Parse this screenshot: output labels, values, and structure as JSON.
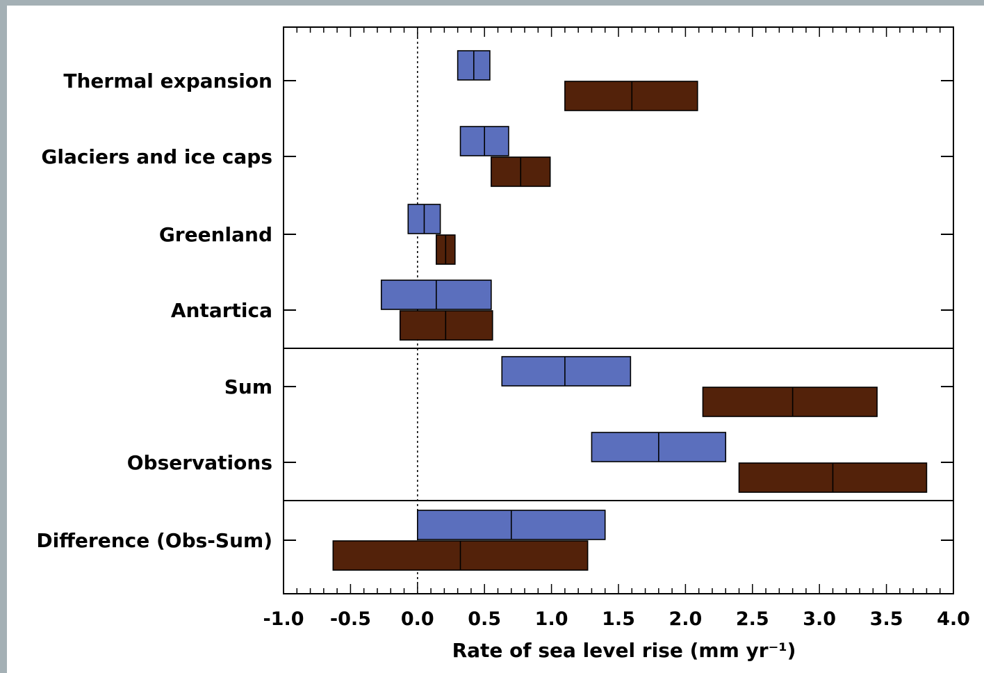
{
  "chart_data": {
    "type": "bar",
    "subtype": "range-bars",
    "xlabel": "Rate of sea level rise (mm yr⁻¹)",
    "xlim": [
      -1.0,
      4.0
    ],
    "xticks": [
      "-1.0",
      "-0.5",
      "0.0",
      "0.5",
      "1.0",
      "1.5",
      "2.0",
      "2.5",
      "3.0",
      "3.5",
      "4.0"
    ],
    "reference_line_x": 0.0,
    "colors": {
      "blue": "#5b6fbd",
      "brown": "#53220a"
    },
    "categories": [
      "Thermal expansion",
      "Glaciers and ice caps",
      "Greenland",
      "Antartica",
      "Sum",
      "Observations",
      "Difference (Obs-Sum)"
    ],
    "group_separators_after": [
      "Antartica",
      "Observations"
    ],
    "series": [
      {
        "color": "blue",
        "values": [
          {
            "low": 0.3,
            "mid": 0.42,
            "high": 0.54
          },
          {
            "low": 0.32,
            "mid": 0.5,
            "high": 0.68
          },
          {
            "low": -0.07,
            "mid": 0.05,
            "high": 0.17
          },
          {
            "low": -0.27,
            "mid": 0.14,
            "high": 0.55
          },
          {
            "low": 0.63,
            "mid": 1.1,
            "high": 1.59
          },
          {
            "low": 1.3,
            "mid": 1.8,
            "high": 2.3
          },
          {
            "low": 0.0,
            "mid": 0.7,
            "high": 1.4
          }
        ]
      },
      {
        "color": "brown",
        "values": [
          {
            "low": 1.1,
            "mid": 1.6,
            "high": 2.09
          },
          {
            "low": 0.55,
            "mid": 0.77,
            "high": 0.99
          },
          {
            "low": 0.14,
            "mid": 0.21,
            "high": 0.28
          },
          {
            "low": -0.13,
            "mid": 0.21,
            "high": 0.56
          },
          {
            "low": 2.13,
            "mid": 2.8,
            "high": 3.43
          },
          {
            "low": 2.4,
            "mid": 3.1,
            "high": 3.8
          },
          {
            "low": -0.63,
            "mid": 0.32,
            "high": 1.27
          }
        ]
      }
    ]
  }
}
